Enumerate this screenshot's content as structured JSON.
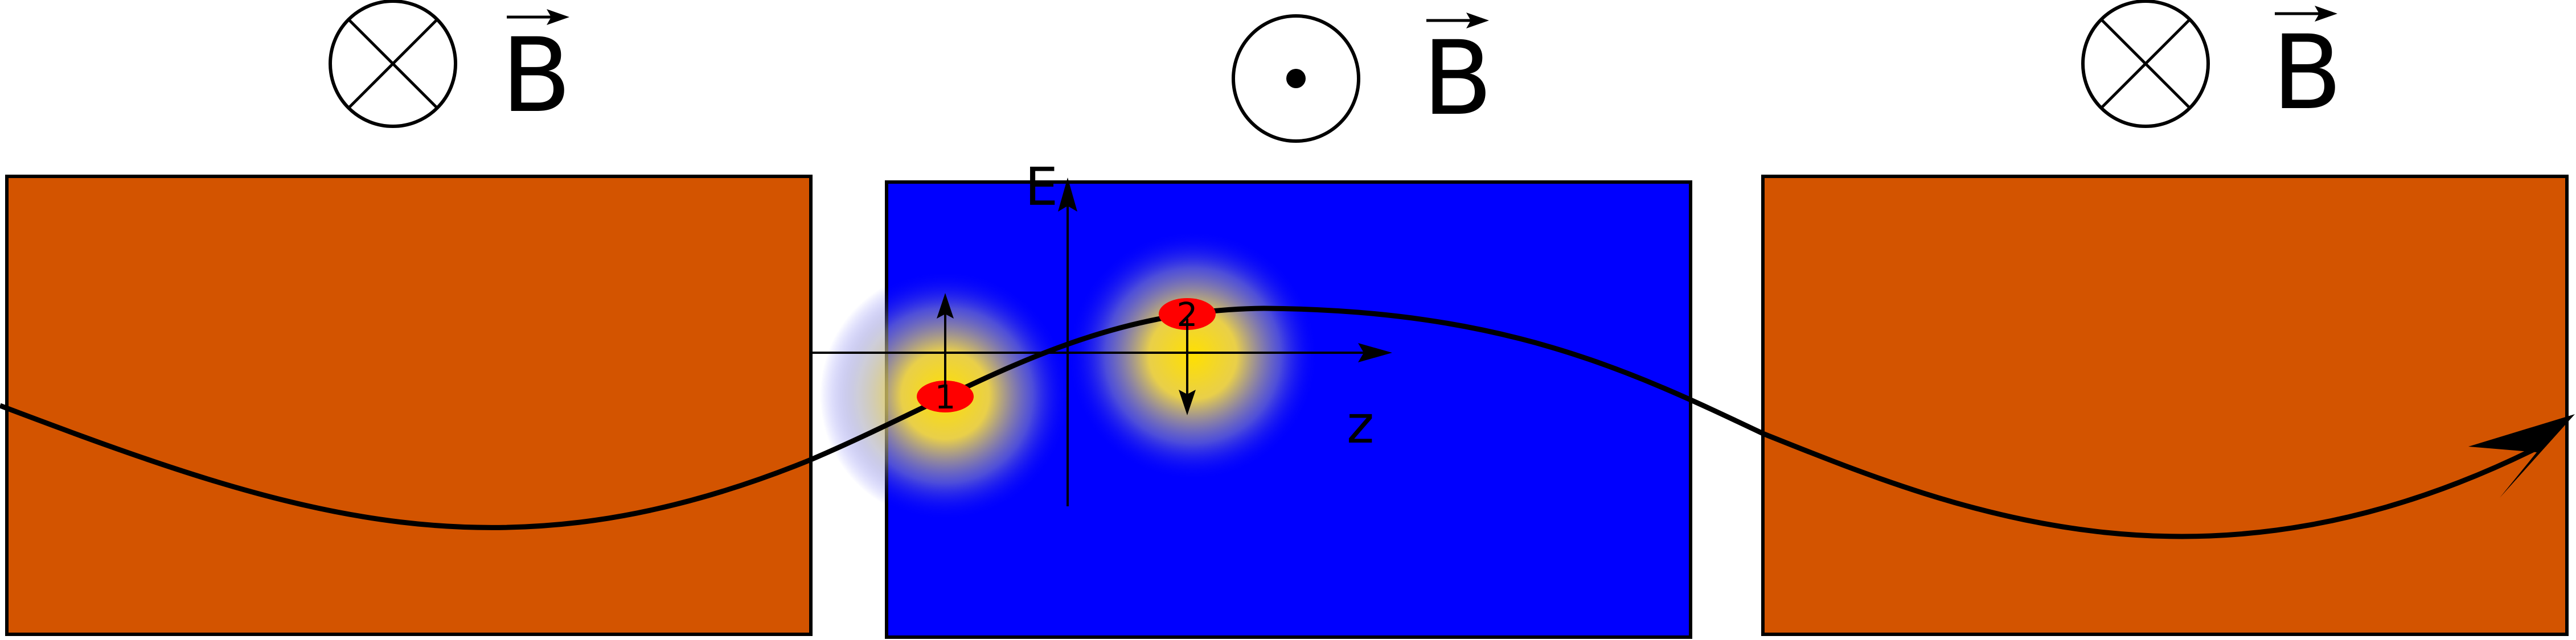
{
  "colors": {
    "magnet_left": "#D35400",
    "magnet_center": "#0000FF",
    "magnet_right": "#D35400",
    "electron": "#FF0000",
    "glow": "#FFD700",
    "trajectory": "#000000"
  },
  "fields": {
    "left": {
      "direction": "into-page",
      "symbol": "⊗",
      "label": "B"
    },
    "center": {
      "direction": "out-of-page",
      "symbol": "⊙",
      "label": "B"
    },
    "right": {
      "direction": "into-page",
      "symbol": "⊗",
      "label": "B"
    }
  },
  "axes": {
    "vertical_label": "E",
    "horizontal_label": "z"
  },
  "particles": [
    {
      "label": "1",
      "force": "up"
    },
    {
      "label": "2",
      "force": "down"
    }
  ]
}
